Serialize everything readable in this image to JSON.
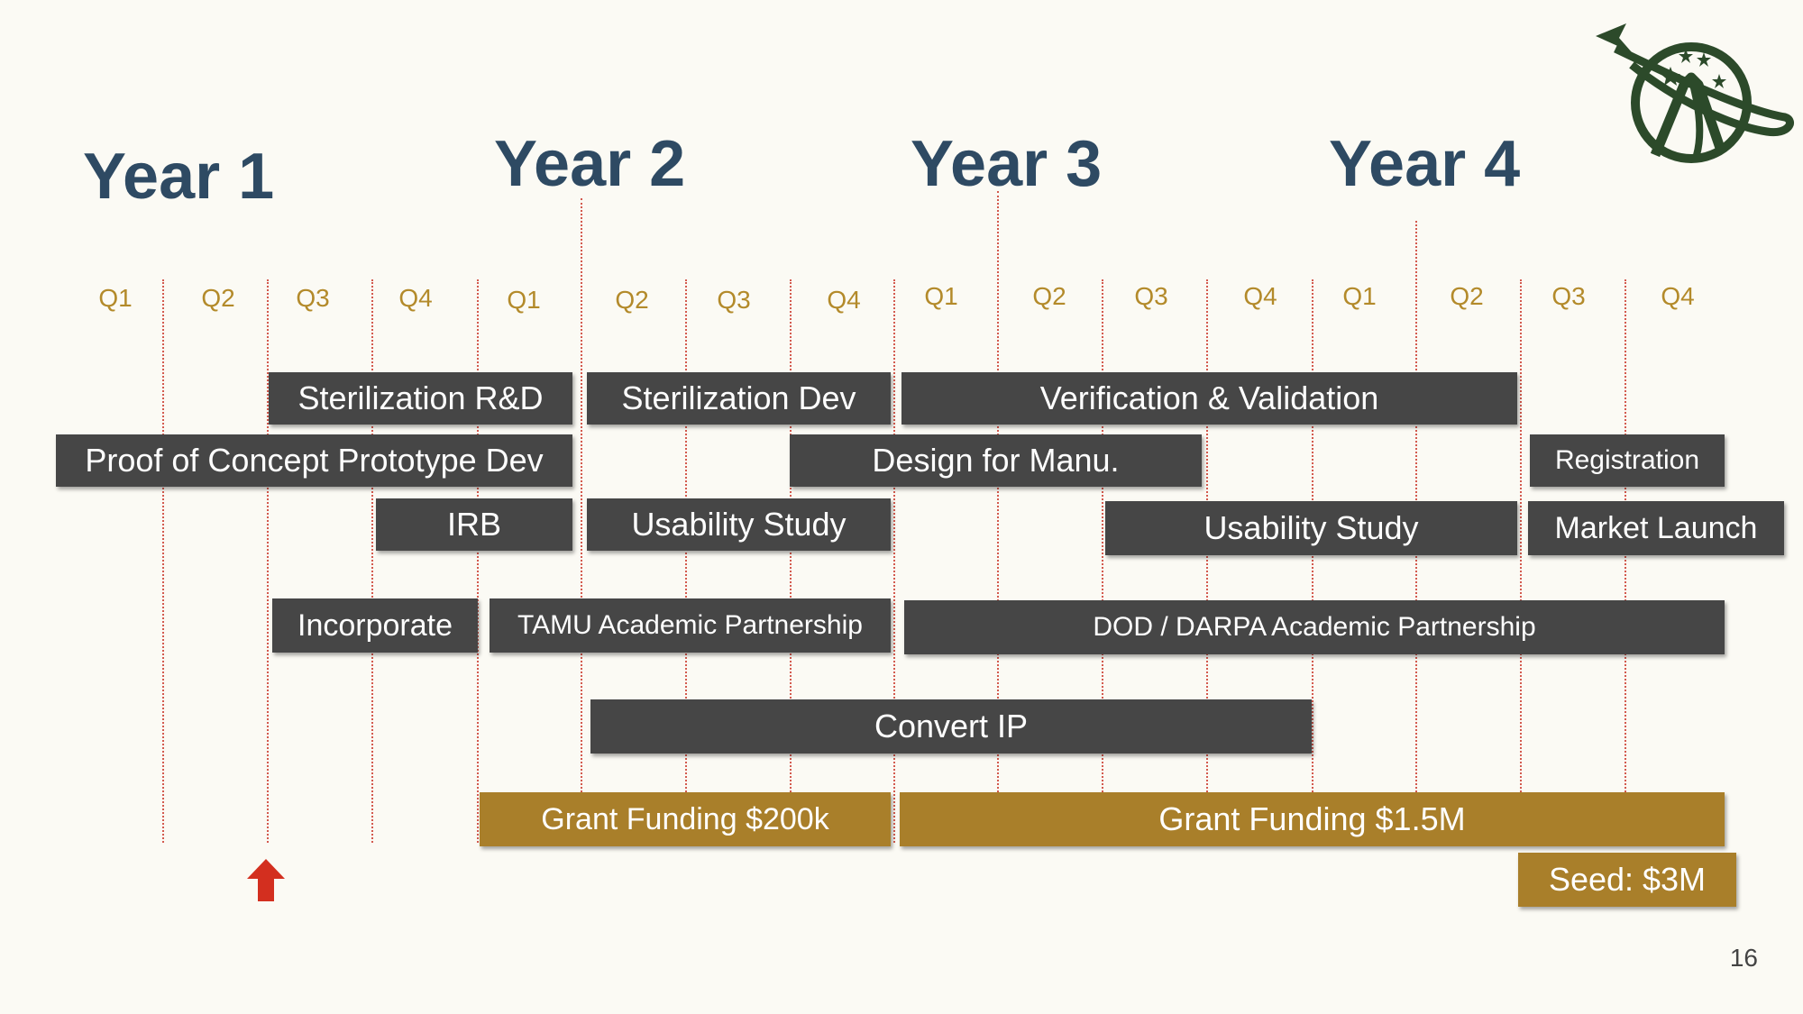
{
  "years": [
    "Year 1",
    "Year 2",
    "Year 3",
    "Year 4"
  ],
  "quarters": [
    "Q1",
    "Q2",
    "Q3",
    "Q4",
    "Q1",
    "Q2",
    "Q3",
    "Q4",
    "Q1",
    "Q2",
    "Q3",
    "Q4",
    "Q1",
    "Q2",
    "Q3",
    "Q4"
  ],
  "tasks": [
    {
      "label": "Sterilization R&D",
      "style": "dark"
    },
    {
      "label": "Sterilization Dev",
      "style": "dark"
    },
    {
      "label": "Verification & Validation",
      "style": "dark"
    },
    {
      "label": "Proof of Concept Prototype Dev",
      "style": "dark"
    },
    {
      "label": "Design for Manu.",
      "style": "dark"
    },
    {
      "label": "Registration",
      "style": "dark"
    },
    {
      "label": "IRB",
      "style": "dark"
    },
    {
      "label": "Usability Study",
      "style": "dark"
    },
    {
      "label": "Usability Study",
      "style": "dark"
    },
    {
      "label": "Market Launch",
      "style": "dark"
    },
    {
      "label": "Incorporate",
      "style": "dark"
    },
    {
      "label": "TAMU Academic Partnership",
      "style": "dark"
    },
    {
      "label": "DOD / DARPA Academic Partnership",
      "style": "dark"
    },
    {
      "label": "Convert IP",
      "style": "dark"
    },
    {
      "label": "Grant Funding $200k",
      "style": "gold"
    },
    {
      "label": "Grant Funding $1.5M",
      "style": "gold"
    },
    {
      "label": "Seed: $3M",
      "style": "gold"
    }
  ],
  "colors": {
    "background": "#fbfaf4",
    "year_text": "#2e4a63",
    "quarter_text": "#b38a2a",
    "gridline": "#d35a4e",
    "task_dark": "#464646",
    "task_gold": "#a97f2a",
    "marker_arrow": "#d32f1f",
    "logo": "#2c4a2a"
  },
  "marker_icon": "red-up-arrow-icon",
  "logo_icon": "planet-ring-star-logo-icon",
  "page_number": "16"
}
